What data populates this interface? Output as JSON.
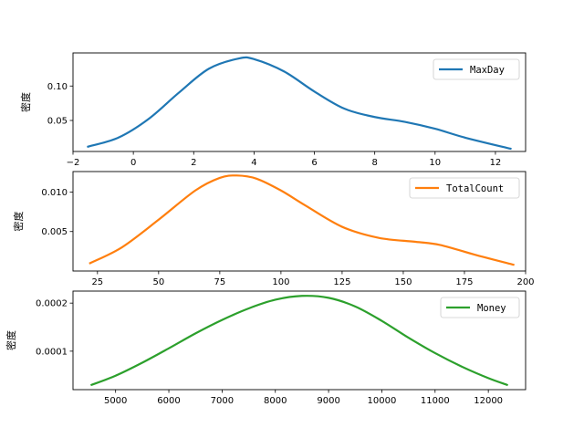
{
  "chart_data": [
    {
      "type": "line",
      "ylabel": "密度",
      "xlim": [
        -2,
        13
      ],
      "ylim": [
        0.005,
        0.148
      ],
      "xticks": [
        -2,
        0,
        2,
        4,
        6,
        8,
        10,
        12
      ],
      "xtick_labels": [
        "−2",
        "0",
        "2",
        "4",
        "6",
        "8",
        "10",
        "12"
      ],
      "yticks": [
        0.05,
        0.1
      ],
      "ytick_labels": [
        "0.05",
        "0.10"
      ],
      "legend_position": "top-right",
      "series": [
        {
          "name": "MaxDay",
          "color": "#1f77b4",
          "x": [
            -1.5,
            -0.5,
            0.5,
            1.5,
            2.5,
            3.5,
            4.0,
            5.0,
            6.0,
            7.0,
            8.0,
            9.0,
            10.0,
            11.0,
            12.5
          ],
          "y": [
            0.012,
            0.025,
            0.052,
            0.09,
            0.125,
            0.14,
            0.139,
            0.121,
            0.092,
            0.067,
            0.055,
            0.048,
            0.038,
            0.025,
            0.009
          ]
        }
      ]
    },
    {
      "type": "line",
      "ylabel": "密度",
      "xlim": [
        15,
        200
      ],
      "ylim": [
        0,
        0.0126
      ],
      "xticks": [
        25,
        50,
        75,
        100,
        125,
        150,
        175,
        200
      ],
      "xtick_labels": [
        "25",
        "50",
        "75",
        "100",
        "125",
        "150",
        "175",
        "200"
      ],
      "yticks": [
        0.005,
        0.01
      ],
      "ytick_labels": [
        "0.005",
        "0.010"
      ],
      "legend_position": "top-right",
      "series": [
        {
          "name": "TotalCount",
          "color": "#ff7f0e",
          "x": [
            22,
            35,
            50,
            65,
            75,
            82,
            90,
            100,
            110,
            125,
            140,
            155,
            165,
            180,
            195
          ],
          "y": [
            0.001,
            0.003,
            0.0065,
            0.0102,
            0.0118,
            0.0121,
            0.0117,
            0.0102,
            0.0083,
            0.0056,
            0.0042,
            0.0037,
            0.0033,
            0.002,
            0.0008
          ]
        }
      ]
    },
    {
      "type": "line",
      "ylabel": "密度",
      "xlim": [
        4200,
        12700
      ],
      "ylim": [
        2e-05,
        0.000225
      ],
      "xticks": [
        5000,
        6000,
        7000,
        8000,
        9000,
        10000,
        11000,
        12000
      ],
      "xtick_labels": [
        "5000",
        "6000",
        "7000",
        "8000",
        "9000",
        "10000",
        "11000",
        "12000"
      ],
      "yticks": [
        0.0001,
        0.0002
      ],
      "ytick_labels": [
        "0.0001",
        "0.0002"
      ],
      "legend_position": "top-right",
      "series": [
        {
          "name": "Money",
          "color": "#2ca02c",
          "x": [
            4550,
            5000,
            5500,
            6000,
            6500,
            7000,
            7500,
            8000,
            8500,
            9000,
            9500,
            10000,
            10500,
            11000,
            11500,
            12000,
            12350
          ],
          "y": [
            3e-05,
            4.9e-05,
            7.6e-05,
            0.000106,
            0.000137,
            0.000165,
            0.000189,
            0.000207,
            0.000215,
            0.000211,
            0.000193,
            0.000163,
            0.000128,
            9.6e-05,
            6.8e-05,
            4.4e-05,
            3e-05
          ]
        }
      ]
    }
  ]
}
